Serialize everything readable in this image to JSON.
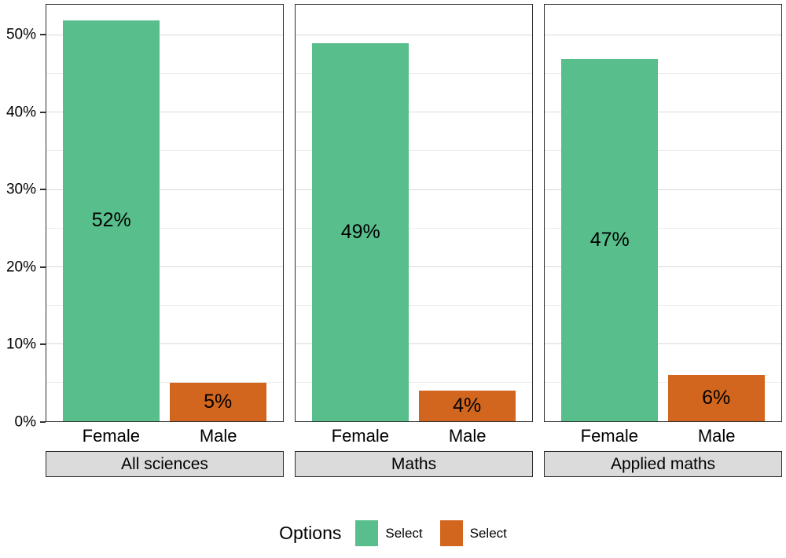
{
  "chart_data": {
    "type": "bar",
    "title": "",
    "xlabel": "",
    "ylabel": "",
    "x_categories": [
      "Female",
      "Male"
    ],
    "facets": [
      {
        "label": "All sciences",
        "bars": [
          {
            "category": "Female",
            "value": 52,
            "label": "52%"
          },
          {
            "category": "Male",
            "value": 5,
            "label": "5%"
          }
        ]
      },
      {
        "label": "Maths",
        "bars": [
          {
            "category": "Female",
            "value": 49,
            "label": "49%"
          },
          {
            "category": "Male",
            "value": 4,
            "label": "4%"
          }
        ]
      },
      {
        "label": "Applied maths",
        "bars": [
          {
            "category": "Female",
            "value": 47,
            "label": "47%"
          },
          {
            "category": "Male",
            "value": 6,
            "label": "6%"
          }
        ]
      }
    ],
    "series_colors": {
      "Female": "#58be8c",
      "Male": "#d2661e"
    },
    "y_axis": {
      "ylim": [
        0,
        54
      ],
      "ticks": [
        {
          "value": 0,
          "label": "0%"
        },
        {
          "value": 10,
          "label": "10%"
        },
        {
          "value": 20,
          "label": "20%"
        },
        {
          "value": 30,
          "label": "30%"
        },
        {
          "value": 40,
          "label": "40%"
        },
        {
          "value": 50,
          "label": "50%"
        }
      ],
      "minor": [
        5,
        15,
        25,
        35,
        45
      ]
    },
    "legend": {
      "title": "Options",
      "entries": [
        {
          "label": "Select",
          "color": "#58be8c"
        },
        {
          "label": "Select",
          "color": "#d2661e"
        }
      ]
    },
    "grid": "on",
    "legend_position": "bottom"
  },
  "colors": {
    "panel_border": "#2e2e2e",
    "strip_bg": "#dbdbdb",
    "gridline_major": "#d9d9d9",
    "gridline_minor": "#ececec"
  }
}
